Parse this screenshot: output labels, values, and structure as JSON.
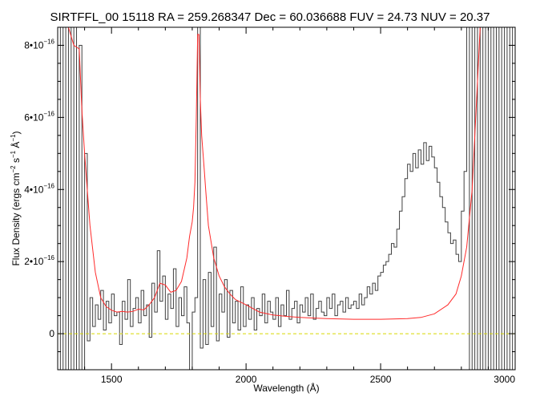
{
  "chart_data": {
    "type": "line",
    "title": "SIRTFFL_00 15118 RA = 259.268347 Dec =  60.036688 FUV = 24.73 NUV = 20.37",
    "xlabel": "Wavelength (Å)",
    "ylabel": {
      "prefix": "Flux Density (ergs cm",
      "exp1": "−2",
      "mid1": " s",
      "exp2": "−1",
      "mid2": " Å",
      "exp3": "−1",
      "suffix": ")"
    },
    "xlim": [
      1300,
      3000
    ],
    "ylim": [
      -1e-16,
      8.5e-16
    ],
    "x_ticks": [
      {
        "value": 1500,
        "label": "1500"
      },
      {
        "value": 2000,
        "label": "2000"
      },
      {
        "value": 2500,
        "label": "2500"
      },
      {
        "value": 3000,
        "label": "3000"
      }
    ],
    "y_ticks": [
      {
        "value": 0,
        "mantissa": "0",
        "exponent": ""
      },
      {
        "value": 2e-16,
        "mantissa": "2•10",
        "exponent": "−16"
      },
      {
        "value": 4e-16,
        "mantissa": "4•10",
        "exponent": "−16"
      },
      {
        "value": 6e-16,
        "mantissa": "6•10",
        "exponent": "−16"
      },
      {
        "value": 8e-16,
        "mantissa": "8•10",
        "exponent": "−16"
      }
    ],
    "grid": false,
    "series": [
      {
        "key": "flux",
        "color": "#404040",
        "style": "steps",
        "x": [
          1300,
          1310,
          1320,
          1330,
          1340,
          1350,
          1360,
          1370,
          1380,
          1390,
          1400,
          1410,
          1420,
          1430,
          1440,
          1450,
          1460,
          1470,
          1480,
          1490,
          1500,
          1510,
          1520,
          1530,
          1540,
          1550,
          1560,
          1570,
          1580,
          1590,
          1600,
          1610,
          1620,
          1630,
          1640,
          1650,
          1660,
          1670,
          1680,
          1690,
          1700,
          1710,
          1720,
          1730,
          1740,
          1750,
          1760,
          1770,
          1780,
          1790,
          1800,
          1810,
          1820,
          1830,
          1840,
          1850,
          1860,
          1870,
          1880,
          1890,
          1900,
          1910,
          1920,
          1930,
          1940,
          1950,
          1960,
          1970,
          1980,
          1990,
          2000,
          2010,
          2020,
          2030,
          2040,
          2050,
          2060,
          2070,
          2080,
          2090,
          2100,
          2110,
          2120,
          2130,
          2140,
          2150,
          2160,
          2170,
          2180,
          2190,
          2200,
          2210,
          2220,
          2230,
          2240,
          2250,
          2260,
          2270,
          2280,
          2290,
          2300,
          2310,
          2320,
          2330,
          2340,
          2350,
          2360,
          2370,
          2380,
          2390,
          2400,
          2410,
          2420,
          2430,
          2440,
          2450,
          2460,
          2470,
          2480,
          2490,
          2500,
          2510,
          2520,
          2530,
          2540,
          2550,
          2560,
          2570,
          2580,
          2590,
          2600,
          2610,
          2620,
          2630,
          2640,
          2650,
          2660,
          2670,
          2680,
          2690,
          2700,
          2710,
          2720,
          2730,
          2740,
          2750,
          2760,
          2770,
          2780,
          2790,
          2800,
          2810,
          2820,
          2830,
          2840,
          2850,
          2860,
          2870,
          2880,
          2890,
          2900,
          2910,
          2920,
          2930,
          2940,
          2950,
          2960,
          2970,
          2980,
          2990,
          3000
        ],
        "y": [
          8.5e-16,
          -1e-16,
          8.5e-16,
          -1e-16,
          8.5e-16,
          -1e-16,
          8.5e-16,
          -1e-16,
          8e-16,
          -1e-16,
          5e-16,
          -2e-17,
          1e-16,
          2e-17,
          8e-17,
          4e-17,
          1.2e-16,
          1e-17,
          9e-17,
          3e-17,
          1.1e-16,
          5e-17,
          6e-17,
          -3e-17,
          9e-17,
          4e-17,
          1.5e-16,
          2e-17,
          7e-17,
          1e-16,
          3e-17,
          1.2e-16,
          5e-17,
          8e-17,
          -1e-17,
          1.4e-16,
          6e-17,
          2.3e-16,
          9e-17,
          1.6e-16,
          4e-17,
          1.1e-16,
          7e-17,
          1.8e-16,
          2e-17,
          1e-16,
          5e-17,
          1.3e-16,
          3e-17,
          -1e-16,
          6e-17,
          1e-16,
          8.5e-16,
          -4e-17,
          1.5e-16,
          -3e-17,
          1.7e-16,
          2e-17,
          2.4e-16,
          -2e-17,
          1.1e-16,
          6e-17,
          1.5e-16,
          -1e-17,
          1.2e-16,
          3e-17,
          9e-17,
          1e-17,
          1.3e-16,
          2e-17,
          8e-17,
          4e-17,
          1e-16,
          1e-17,
          7e-17,
          5e-17,
          1.1e-16,
          3e-17,
          9e-17,
          6e-17,
          4e-17,
          1e-16,
          2e-17,
          8e-17,
          5e-17,
          1.2e-16,
          4e-17,
          7e-17,
          9e-17,
          3e-17,
          8e-17,
          6e-17,
          1e-16,
          5e-17,
          1.1e-16,
          4e-17,
          7e-17,
          9e-17,
          6e-17,
          5e-17,
          1e-16,
          7e-17,
          1.1e-16,
          5e-17,
          8e-17,
          9e-17,
          6e-17,
          1e-16,
          7e-17,
          8e-17,
          9e-17,
          7e-17,
          1.1e-16,
          8e-17,
          1e-16,
          1.3e-16,
          1.1e-16,
          1.4e-16,
          1.2e-16,
          1.6e-16,
          1.7e-16,
          1.9e-16,
          2e-16,
          2.2e-16,
          2.5e-16,
          2.4e-16,
          2.9e-16,
          3.4e-16,
          3.8e-16,
          4.3e-16,
          4.7e-16,
          4.5e-16,
          5e-16,
          4.6e-16,
          5.1e-16,
          4.7e-16,
          5.3e-16,
          4.8e-16,
          5.2e-16,
          4.9e-16,
          4.6e-16,
          4.2e-16,
          3.8e-16,
          3.5e-16,
          3.1e-16,
          2.8e-16,
          2.5e-16,
          2.6e-16,
          2.2e-16,
          2e-16,
          3.4e-16,
          4.5e-16,
          8.5e-16,
          -1e-16,
          8.5e-16,
          -1e-16,
          8.5e-16,
          -1e-16,
          8.5e-16,
          -1e-16,
          8.5e-16,
          -1e-16,
          8.5e-16,
          -1e-16,
          8.5e-16,
          -1e-16,
          8.5e-16,
          -1e-16,
          8.5e-16,
          -1e-16,
          8.5e-16
        ]
      },
      {
        "key": "error",
        "color": "#ff2a2a",
        "style": "smooth",
        "x": [
          1340,
          1360,
          1380,
          1390,
          1400,
          1410,
          1420,
          1440,
          1460,
          1480,
          1500,
          1520,
          1540,
          1560,
          1580,
          1600,
          1620,
          1640,
          1660,
          1680,
          1700,
          1720,
          1740,
          1760,
          1780,
          1790,
          1800,
          1805,
          1810,
          1815,
          1820,
          1825,
          1830,
          1835,
          1840,
          1845,
          1850,
          1860,
          1880,
          1900,
          1920,
          1940,
          1960,
          2000,
          2050,
          2100,
          2150,
          2200,
          2300,
          2400,
          2500,
          2600,
          2650,
          2700,
          2750,
          2780,
          2800,
          2820,
          2840,
          2860,
          2870,
          2880
        ],
        "y": [
          8.5e-16,
          8e-16,
          7.9e-16,
          6.2e-16,
          5e-16,
          4e-16,
          3e-16,
          1.7e-16,
          1e-16,
          7.5e-17,
          6.5e-17,
          6e-17,
          6.2e-17,
          6e-17,
          6.2e-17,
          6.8e-17,
          6.6e-17,
          8e-17,
          1e-16,
          1.4e-16,
          1.35e-16,
          1.15e-16,
          1.2e-16,
          1.45e-16,
          2.1e-16,
          2.7e-16,
          3.1e-16,
          3.5e-16,
          4.2e-16,
          6e-16,
          8.3e-16,
          8.3e-16,
          6.5e-16,
          5.5e-16,
          5e-16,
          4.5e-16,
          4e-16,
          3e-16,
          2.1e-16,
          1.6e-16,
          1.3e-16,
          1.1e-16,
          9.5e-17,
          8e-17,
          6e-17,
          5.2e-17,
          4.8e-17,
          4.5e-17,
          4.2e-17,
          4e-17,
          4e-17,
          4.2e-17,
          4.5e-17,
          5.5e-17,
          8e-17,
          1.1e-16,
          1.6e-16,
          2.4e-16,
          4e-16,
          7e-16,
          8.5e-16,
          8.5e-16
        ]
      },
      {
        "key": "model",
        "color": "#d8d800",
        "style": "dashed",
        "x": [
          1300,
          3000
        ],
        "y": [
          0,
          0
        ]
      }
    ]
  }
}
